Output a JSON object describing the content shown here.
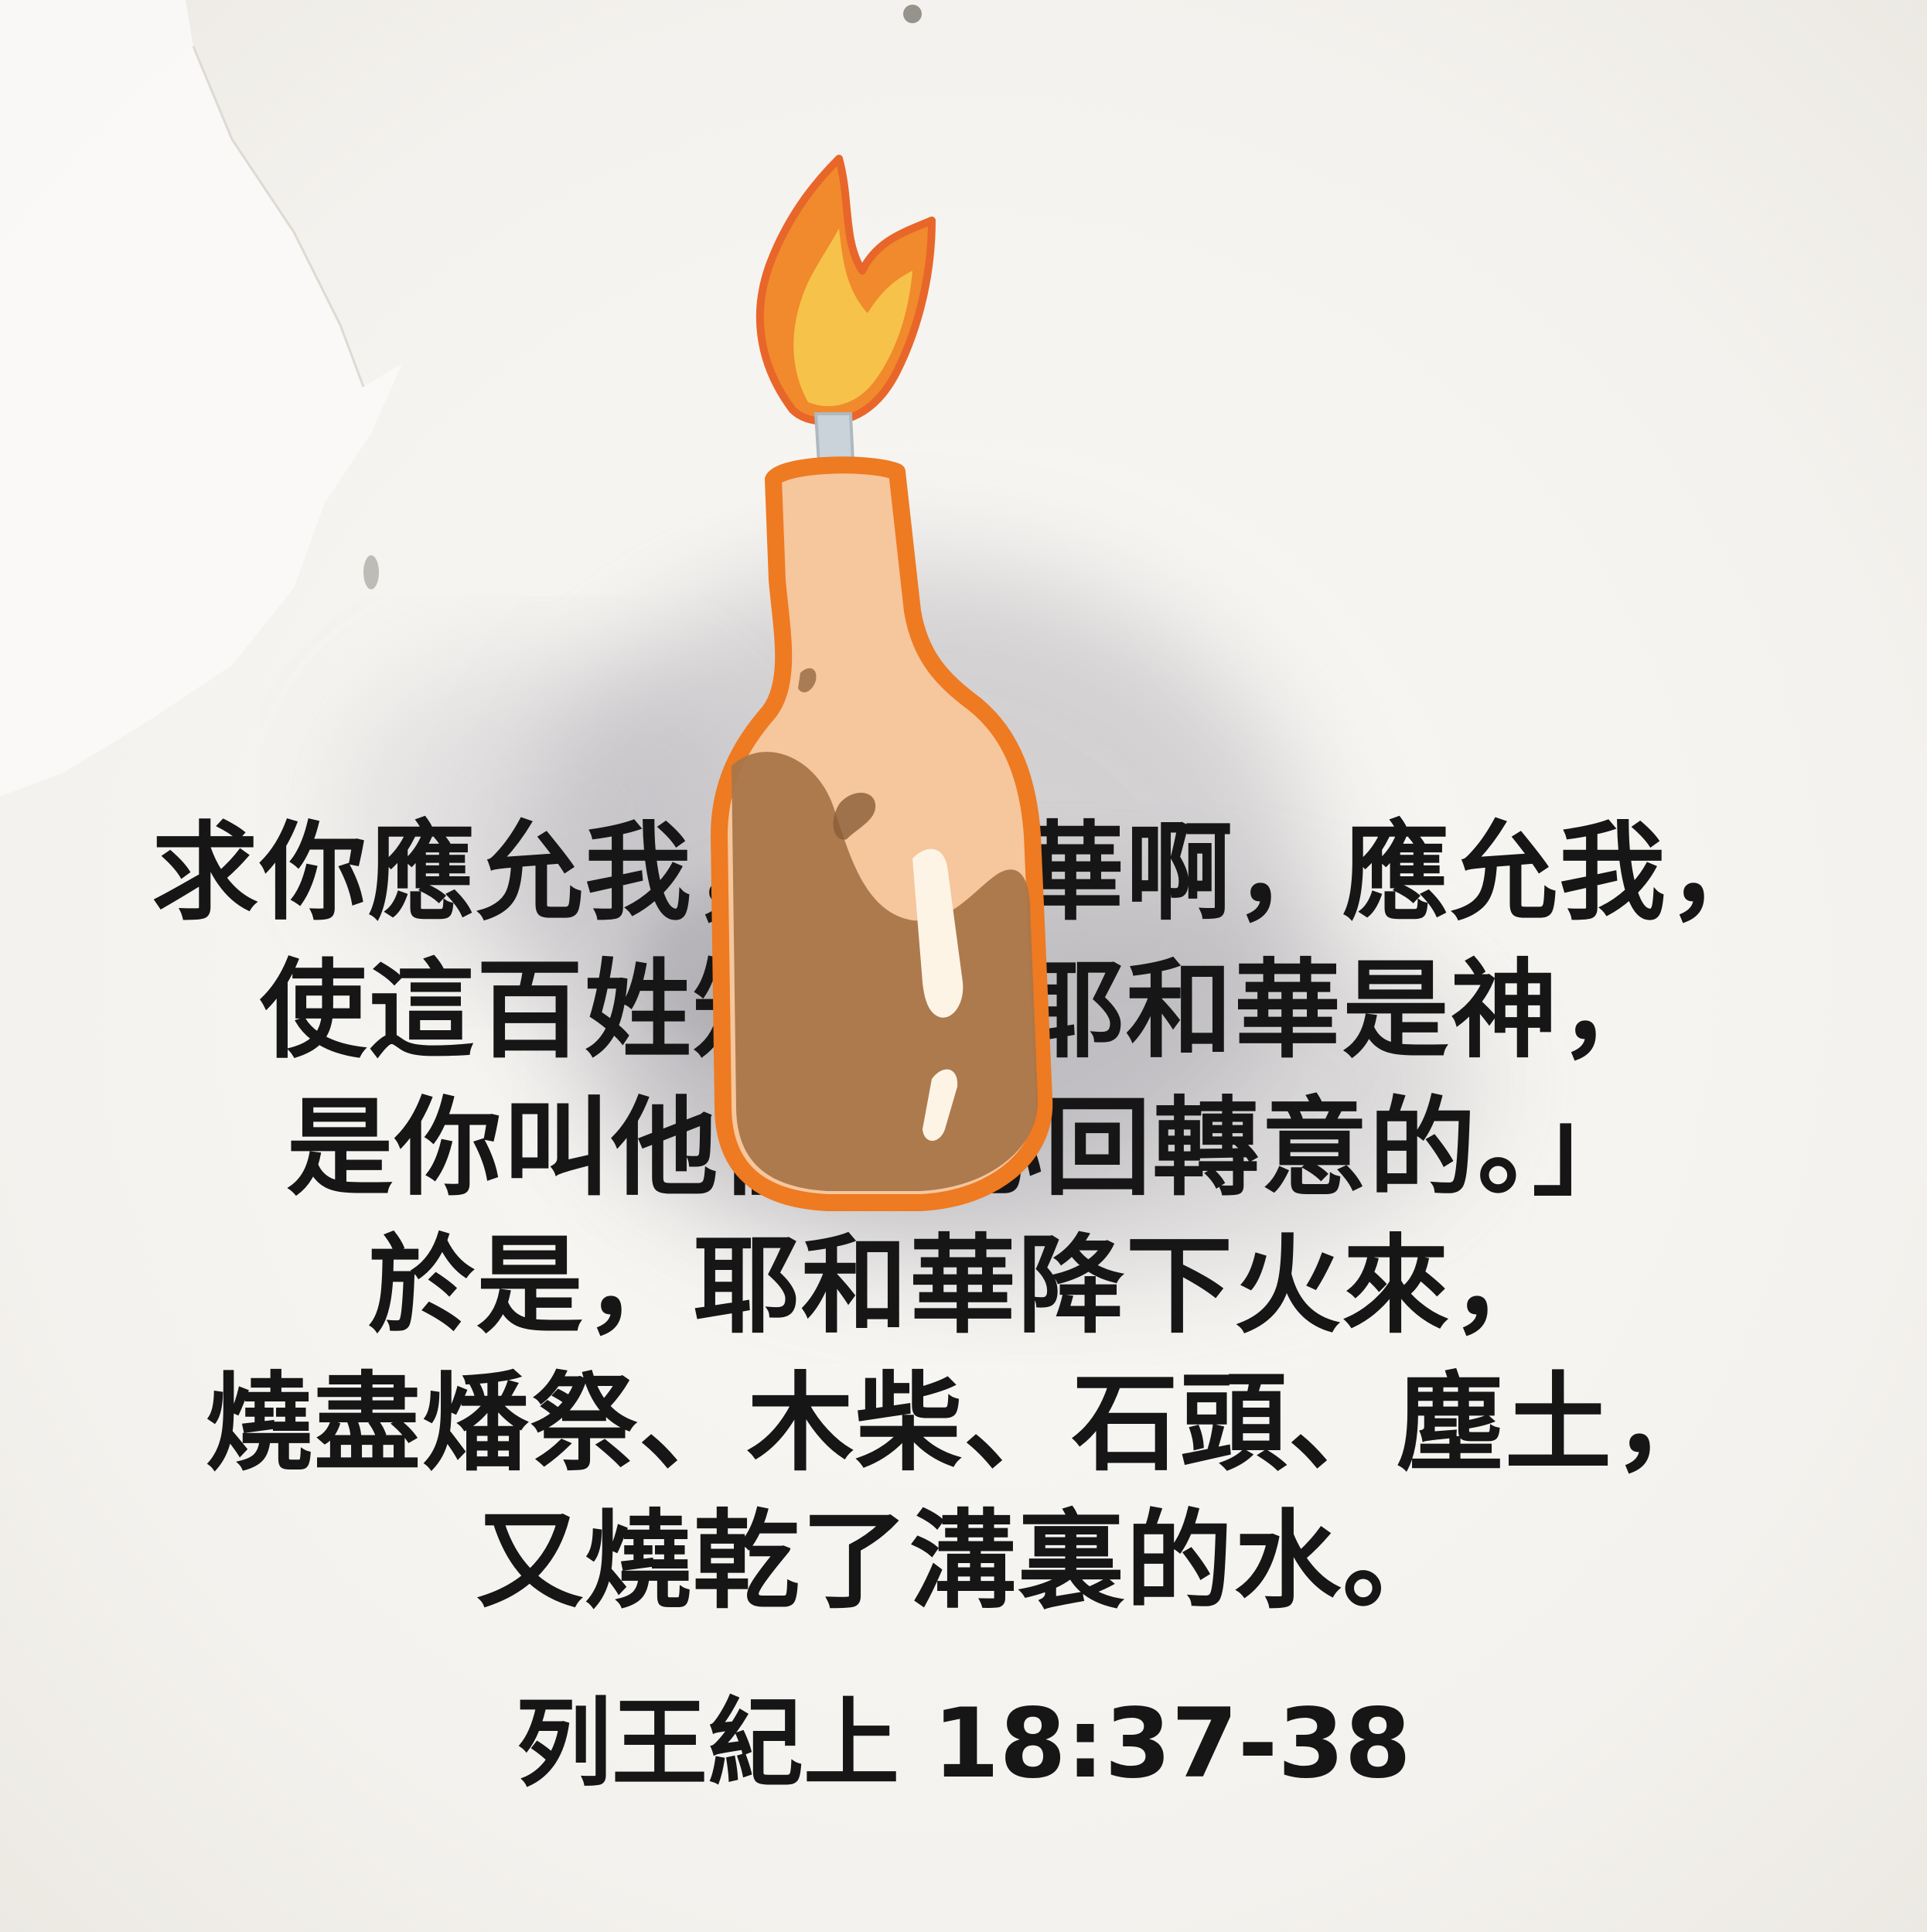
{
  "verse": {
    "lines": [
      "求你應允我，耶和華啊，應允我，",
      "使這百姓知道你耶和華是神，",
      "是你叫他們的心回轉意的。」",
      "於是，耶和華降下火來，",
      "燒盡燔祭、木柴、石頭、塵土，",
      "又燒乾了溝裏的水。"
    ]
  },
  "reference": "列王紀上 18:37-38",
  "illustration": {
    "icon": "flaming-bottle-icon",
    "colors": {
      "outline": "#ee7a22",
      "flame_outer": "#f08a2c",
      "flame_inner": "#f7c24a",
      "glass_light": "#f6c69c",
      "liquid": "#a9764a",
      "wick": "#c9d3d9",
      "highlight": "#fdf4e6"
    }
  },
  "background": {
    "paper": "#f6f4f0",
    "wash": "#8f8c96"
  }
}
